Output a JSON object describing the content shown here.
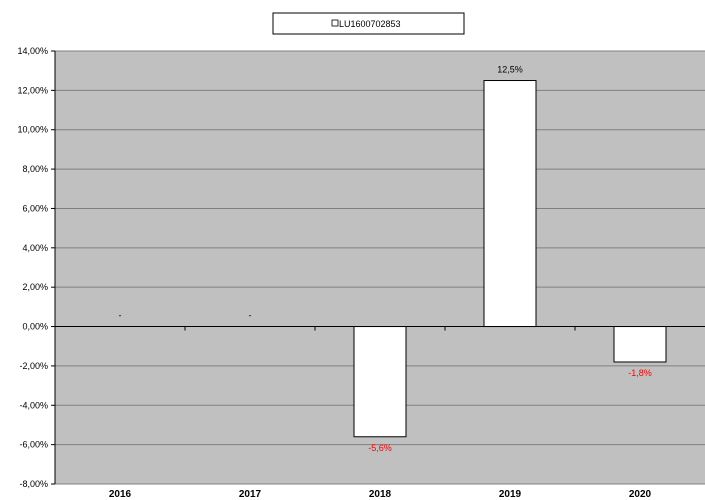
{
  "chart_data": {
    "type": "bar",
    "categories": [
      "2016",
      "2017",
      "2018",
      "2019",
      "2020"
    ],
    "series": [
      {
        "name": "LU1600702853",
        "values": [
          null,
          null,
          -5.6,
          12.5,
          -1.8
        ]
      }
    ],
    "data_labels": [
      "-",
      "-",
      "-5,6%",
      "12,5%",
      "-1,8%"
    ],
    "ylim": [
      -8,
      14
    ],
    "y_ticks": [
      14,
      12,
      10,
      8,
      6,
      4,
      2,
      0,
      -2,
      -4,
      -6,
      -8
    ],
    "y_tick_labels": [
      "14,00%",
      "12,00%",
      "10,00%",
      "8,00%",
      "6,00%",
      "4,00%",
      "2,00%",
      "0,00%",
      "-2,00%",
      "-4,00%",
      "-6,00%",
      "-8,00%"
    ],
    "title": "",
    "xlabel": "",
    "ylabel": "",
    "grid": true,
    "legend_position": "top-center",
    "colors": {
      "plot_background": "#c0c0c0",
      "bar_fill": "#ffffff",
      "bar_stroke": "#000000",
      "gridline": "#808080",
      "positive_label": "#000000",
      "negative_label": "#ff0000"
    }
  }
}
